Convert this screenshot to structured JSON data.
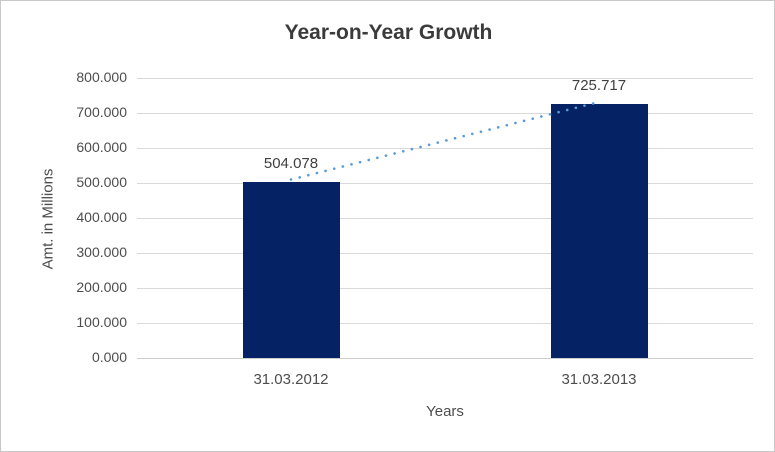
{
  "chart_data": {
    "type": "bar",
    "title": "Year-on-Year Growth",
    "xlabel": "Years",
    "ylabel": "Amt. in Millions",
    "categories": [
      "31.03.2012",
      "31.03.2013"
    ],
    "values": [
      504.078,
      725.717
    ],
    "value_labels": [
      "504.078",
      "725.717"
    ],
    "ylim": [
      0,
      800
    ],
    "ytick_step": 100,
    "ytick_labels": [
      "0.000",
      "100.000",
      "200.000",
      "300.000",
      "400.000",
      "500.000",
      "600.000",
      "700.000",
      "800.000"
    ],
    "grid": true,
    "legend": false,
    "trendline": {
      "style": "dotted",
      "from_value": 504.078,
      "to_value": 725.717
    },
    "colors": {
      "bar": "#052364",
      "trendline": "#5b9bd5",
      "gridline": "#d9d9d9",
      "axis_text": "#4d4d4d",
      "title_text": "#3b3b3b"
    }
  }
}
